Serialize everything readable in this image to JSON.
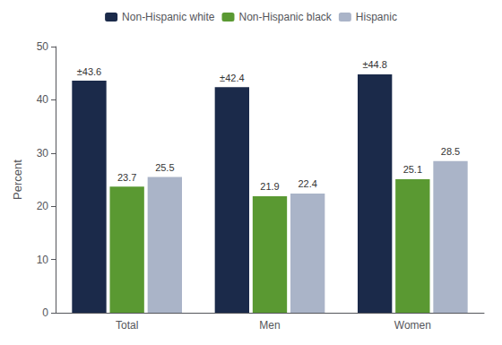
{
  "chart_data": {
    "type": "bar",
    "categories": [
      "Total",
      "Men",
      "Women"
    ],
    "series": [
      {
        "name": "Non-Hispanic white",
        "color": "#1b2a4a",
        "values": [
          43.6,
          42.4,
          44.8
        ],
        "value_labels": [
          "±43.6",
          "±42.4",
          "±44.8"
        ]
      },
      {
        "name": "Non-Hispanic black",
        "color": "#5a9932",
        "values": [
          23.7,
          21.9,
          25.1
        ]
      },
      {
        "name": "Hispanic",
        "color": "#aab4c8",
        "values": [
          25.5,
          22.4,
          28.5
        ]
      }
    ],
    "ylabel": "Percent",
    "ylim": [
      0,
      50
    ],
    "yticks": [
      0,
      10,
      20,
      30,
      40,
      50
    ],
    "grid": false,
    "legend": "top",
    "data_labels": true
  }
}
